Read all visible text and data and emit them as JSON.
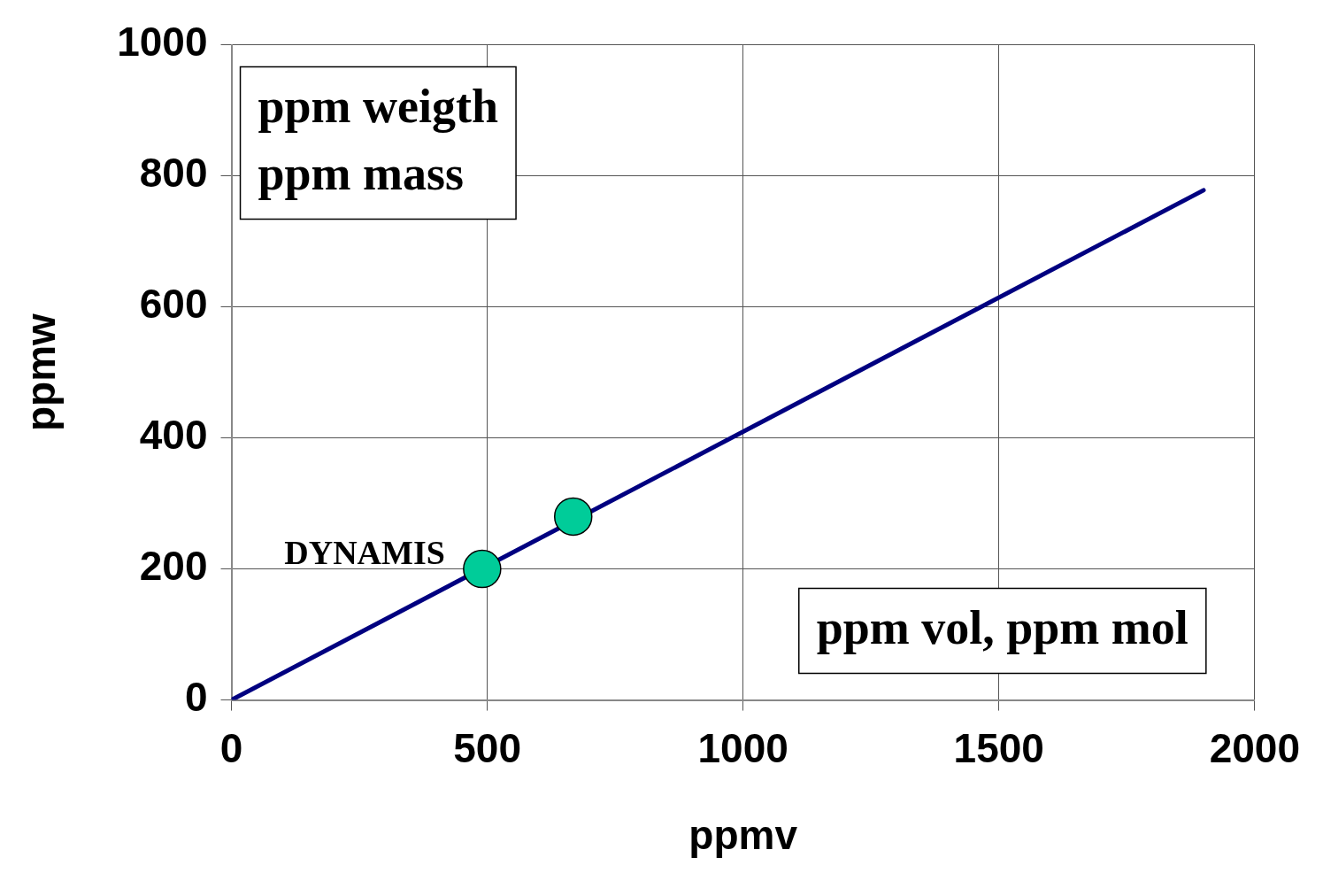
{
  "chart_data": {
    "type": "line",
    "xlabel": "ppmv",
    "ylabel": "ppmw",
    "xlim": [
      0,
      2000
    ],
    "xticks": [
      0,
      500,
      1000,
      1500,
      2000
    ],
    "ylim": [
      0,
      1000
    ],
    "yticks": [
      0,
      200,
      400,
      600,
      800,
      1000
    ],
    "grid": true,
    "legend": false,
    "series": [
      {
        "color": "#000080",
        "x": [
          0,
          1900
        ],
        "values": [
          0,
          778
        ],
        "marker": "none",
        "line_style": "solid"
      },
      {
        "type": "scatter",
        "color": "#00cc99",
        "x": [
          490,
          668
        ],
        "values": [
          200,
          280
        ],
        "marker": "circle"
      }
    ],
    "annotations": [
      "ppm weigth\nppm mass",
      "ppm vol, ppm mol",
      {
        "text": "DYNAMIS",
        "x": 490,
        "y": 200
      }
    ]
  }
}
